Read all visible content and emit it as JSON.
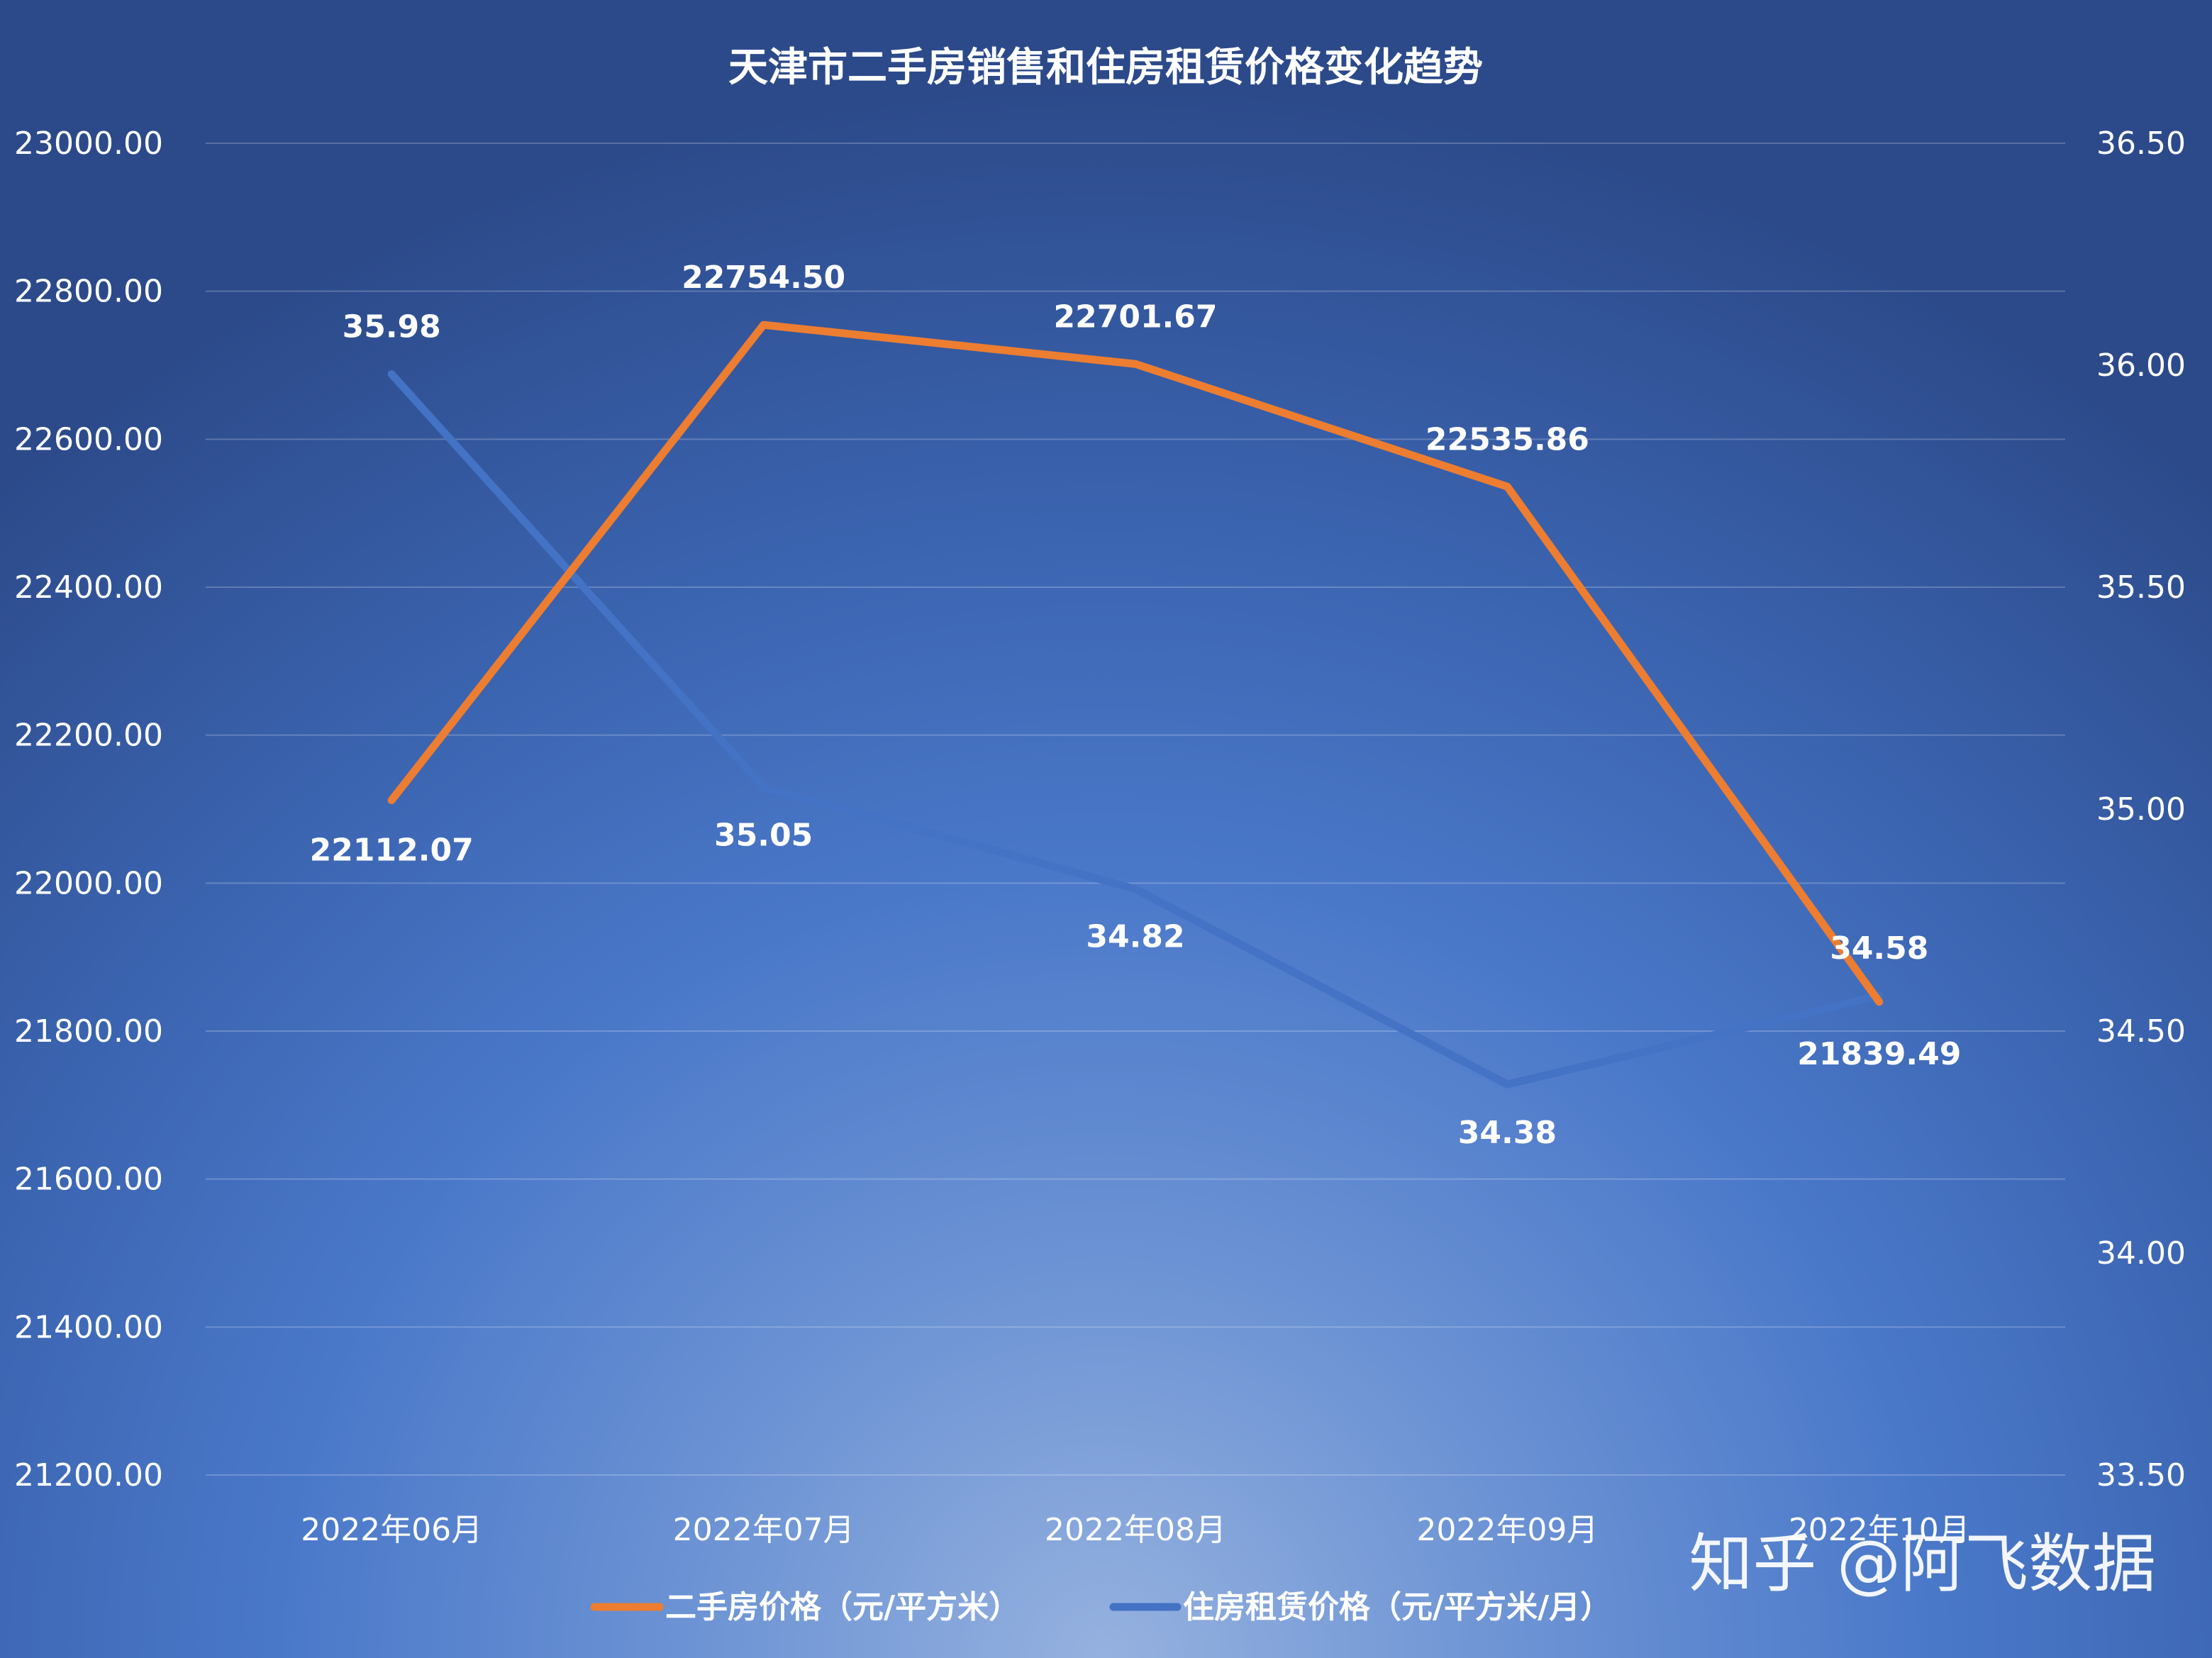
{
  "chart_data": {
    "type": "line",
    "title": "天津市二手房销售和住房租赁价格变化趋势",
    "categories": [
      "2022年06月",
      "2022年07月",
      "2022年08月",
      "2022年09月",
      "2022年10月"
    ],
    "y_left": {
      "range": [
        21200,
        23000
      ],
      "ticks": [
        "21200.00",
        "21400.00",
        "21600.00",
        "21800.00",
        "22000.00",
        "22200.00",
        "22400.00",
        "22600.00",
        "22800.00",
        "23000.00"
      ]
    },
    "y_right": {
      "range": [
        33.5,
        36.5
      ],
      "ticks": [
        "33.50",
        "34.00",
        "34.50",
        "35.00",
        "35.50",
        "36.00",
        "36.50"
      ]
    },
    "grid": true,
    "legend_position": "bottom",
    "series": [
      {
        "name": "二手房价格（元/平方米）",
        "axis": "left",
        "color": "#ed7d31",
        "values": [
          22112.07,
          22754.5,
          22701.67,
          22535.86,
          21839.49
        ],
        "labels": [
          "22112.07",
          "22754.50",
          "22701.67",
          "22535.86",
          "21839.49"
        ]
      },
      {
        "name": "住房租赁价格（元/平方米/月）",
        "axis": "right",
        "color": "#4472c4",
        "values": [
          35.98,
          35.05,
          34.82,
          34.38,
          34.58
        ],
        "labels": [
          "35.98",
          "35.05",
          "34.82",
          "34.38",
          "34.58"
        ]
      }
    ]
  },
  "watermark": "知乎 @阿飞数据"
}
